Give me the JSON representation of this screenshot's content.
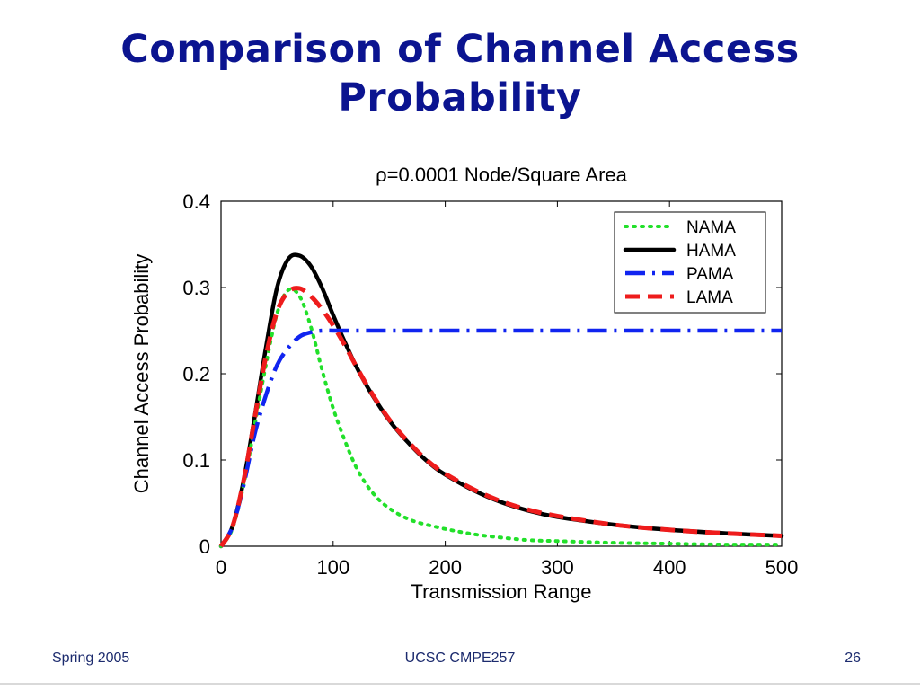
{
  "slide": {
    "title_line1": "Comparison of Channel Access",
    "title_line2": "Probability"
  },
  "footer": {
    "left": "Spring 2005",
    "center": "UCSC CMPE257",
    "right": "26"
  },
  "colors": {
    "title": "#0b1490",
    "NAMA": "#22e02a",
    "HAMA": "#000000",
    "PAMA": "#1024f0",
    "LAMA": "#ee1c1c"
  },
  "chart_data": {
    "type": "line",
    "title": "ρ=0.0001 Node/Square Area",
    "xlabel": "Transmission Range",
    "ylabel": "Channel Access Probability",
    "xlim": [
      0,
      500
    ],
    "ylim": [
      0,
      0.4
    ],
    "x_ticks": [
      "0",
      "100",
      "200",
      "300",
      "400",
      "500"
    ],
    "y_ticks": [
      "0",
      "0.1",
      "0.2",
      "0.3",
      "0.4"
    ],
    "grid": false,
    "legend_position": "top-right",
    "x": [
      0,
      10,
      20,
      30,
      40,
      50,
      60,
      70,
      80,
      90,
      100,
      110,
      120,
      130,
      140,
      150,
      160,
      170,
      180,
      190,
      200,
      225,
      250,
      275,
      300,
      350,
      400,
      450,
      500
    ],
    "series": [
      {
        "name": "NAMA",
        "style": "dotted",
        "values": [
          0,
          0.02,
          0.07,
          0.14,
          0.21,
          0.27,
          0.297,
          0.29,
          0.255,
          0.205,
          0.16,
          0.124,
          0.093,
          0.071,
          0.055,
          0.044,
          0.036,
          0.03,
          0.026,
          0.023,
          0.02,
          0.014,
          0.01,
          0.007,
          0.006,
          0.004,
          0.003,
          0.002,
          0.002
        ]
      },
      {
        "name": "HAMA",
        "style": "solid",
        "values": [
          0,
          0.022,
          0.075,
          0.15,
          0.23,
          0.3,
          0.333,
          0.337,
          0.325,
          0.3,
          0.268,
          0.238,
          0.21,
          0.186,
          0.165,
          0.146,
          0.13,
          0.116,
          0.103,
          0.092,
          0.083,
          0.065,
          0.051,
          0.041,
          0.034,
          0.025,
          0.019,
          0.015,
          0.012
        ]
      },
      {
        "name": "PAMA",
        "style": "dashdot",
        "values": [
          0,
          0.022,
          0.07,
          0.13,
          0.175,
          0.21,
          0.23,
          0.243,
          0.248,
          0.25,
          0.25,
          0.25,
          0.25,
          0.25,
          0.25,
          0.25,
          0.25,
          0.25,
          0.25,
          0.25,
          0.25,
          0.25,
          0.25,
          0.25,
          0.25,
          0.25,
          0.25,
          0.25,
          0.25
        ]
      },
      {
        "name": "LAMA",
        "style": "dashed",
        "values": [
          0,
          0.022,
          0.075,
          0.148,
          0.22,
          0.272,
          0.295,
          0.299,
          0.29,
          0.275,
          0.256,
          0.234,
          0.21,
          0.187,
          0.166,
          0.147,
          0.131,
          0.117,
          0.104,
          0.093,
          0.084,
          0.066,
          0.052,
          0.042,
          0.035,
          0.025,
          0.019,
          0.015,
          0.012
        ]
      }
    ]
  }
}
